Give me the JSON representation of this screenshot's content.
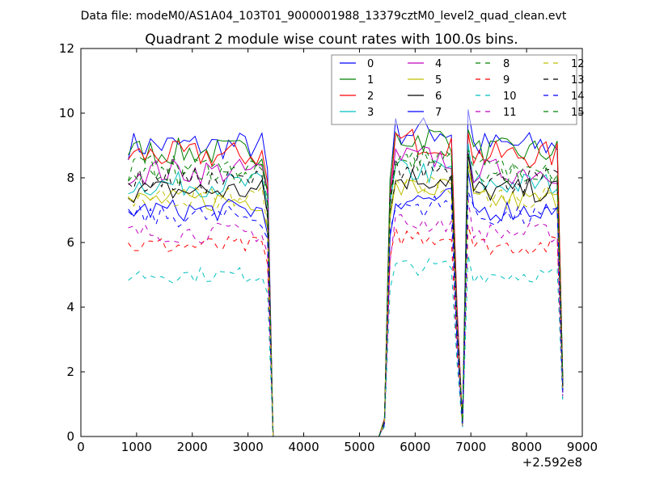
{
  "chart_data": {
    "type": "line",
    "suptitle": "Data file: modeM0/AS1A04_103T01_9000001988_13379cztM0_level2_quad_clean.evt",
    "title": "Quadrant 2 module wise count rates with 100.0s bins.",
    "xlabel": "",
    "ylabel": "",
    "x_offset_label": "+2.592e8",
    "xlim": [
      0,
      9000
    ],
    "ylim": [
      0,
      12
    ],
    "xticks": [
      0,
      1000,
      2000,
      3000,
      4000,
      5000,
      6000,
      7000,
      8000,
      9000
    ],
    "yticks": [
      0,
      2,
      4,
      6,
      8,
      10,
      12
    ],
    "grid": false,
    "legend_position": "top-right",
    "legend_columns": 4,
    "x_start": 850,
    "x_step": 100,
    "x_count": 79,
    "profile_note": "relative rate profile shared by all modules",
    "profile": [
      1,
      1,
      1,
      1,
      1,
      1,
      1,
      1,
      1,
      1,
      1,
      1,
      1,
      1,
      1,
      1,
      1,
      1,
      1,
      1,
      1,
      1,
      1,
      1,
      1,
      0.9,
      0,
      0,
      0,
      0,
      0,
      0,
      0,
      0,
      0,
      0,
      0,
      0,
      0,
      0,
      0,
      0,
      0,
      0,
      0,
      0,
      0.06,
      0.9,
      1.05,
      1.05,
      1.05,
      1.05,
      1.05,
      1.05,
      1.05,
      1.05,
      1.05,
      1.05,
      1.05,
      0.45,
      0.05,
      1.12,
      1,
      1,
      1,
      1,
      1,
      1,
      1,
      1,
      1,
      1,
      1,
      1,
      1,
      1,
      1,
      1,
      0.2
    ],
    "series": [
      {
        "name": "0",
        "color": "#0000ff",
        "dash": false,
        "level": 9.0
      },
      {
        "name": "1",
        "color": "#008000",
        "dash": false,
        "level": 8.8
      },
      {
        "name": "2",
        "color": "#ff0000",
        "dash": false,
        "level": 8.7
      },
      {
        "name": "3",
        "color": "#00bfbf",
        "dash": false,
        "level": 7.8
      },
      {
        "name": "4",
        "color": "#bf00bf",
        "dash": false,
        "level": 8.2
      },
      {
        "name": "5",
        "color": "#bfbf00",
        "dash": false,
        "level": 7.3
      },
      {
        "name": "6",
        "color": "#000000",
        "dash": false,
        "level": 7.6
      },
      {
        "name": "7",
        "color": "#0000ff",
        "dash": false,
        "level": 7.0
      },
      {
        "name": "8",
        "color": "#008000",
        "dash": true,
        "level": 8.3
      },
      {
        "name": "9",
        "color": "#ff0000",
        "dash": true,
        "level": 5.9
      },
      {
        "name": "10",
        "color": "#00bfbf",
        "dash": true,
        "level": 5.0
      },
      {
        "name": "11",
        "color": "#bf00bf",
        "dash": true,
        "level": 6.3
      },
      {
        "name": "12",
        "color": "#bfbf00",
        "dash": true,
        "level": 7.4
      },
      {
        "name": "13",
        "color": "#000000",
        "dash": true,
        "level": 7.9
      },
      {
        "name": "14",
        "color": "#0000ff",
        "dash": true,
        "level": 6.8
      },
      {
        "name": "15",
        "color": "#008000",
        "dash": true,
        "level": 8.1
      }
    ]
  }
}
